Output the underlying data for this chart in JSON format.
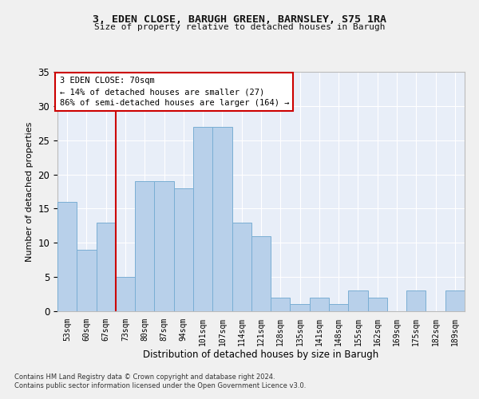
{
  "title1": "3, EDEN CLOSE, BARUGH GREEN, BARNSLEY, S75 1RA",
  "title2": "Size of property relative to detached houses in Barugh",
  "xlabel": "Distribution of detached houses by size in Barugh",
  "ylabel": "Number of detached properties",
  "categories": [
    "53sqm",
    "60sqm",
    "67sqm",
    "73sqm",
    "80sqm",
    "87sqm",
    "94sqm",
    "101sqm",
    "107sqm",
    "114sqm",
    "121sqm",
    "128sqm",
    "135sqm",
    "141sqm",
    "148sqm",
    "155sqm",
    "162sqm",
    "169sqm",
    "175sqm",
    "182sqm",
    "189sqm"
  ],
  "values": [
    16,
    9,
    13,
    5,
    19,
    19,
    18,
    27,
    27,
    13,
    11,
    2,
    1,
    2,
    1,
    3,
    2,
    0,
    3,
    0,
    3
  ],
  "bar_color": "#b8d0ea",
  "bar_edge_color": "#7aaed4",
  "vline_color": "#cc0000",
  "vline_x": 2.5,
  "annotation_text": "3 EDEN CLOSE: 70sqm\n← 14% of detached houses are smaller (27)\n86% of semi-detached houses are larger (164) →",
  "annotation_box_color": "#ffffff",
  "annotation_edge_color": "#cc0000",
  "ylim": [
    0,
    35
  ],
  "yticks": [
    0,
    5,
    10,
    15,
    20,
    25,
    30,
    35
  ],
  "bg_color": "#e8eef8",
  "fig_bg_color": "#f0f0f0",
  "grid_color": "#ffffff",
  "footer": "Contains HM Land Registry data © Crown copyright and database right 2024.\nContains public sector information licensed under the Open Government Licence v3.0."
}
